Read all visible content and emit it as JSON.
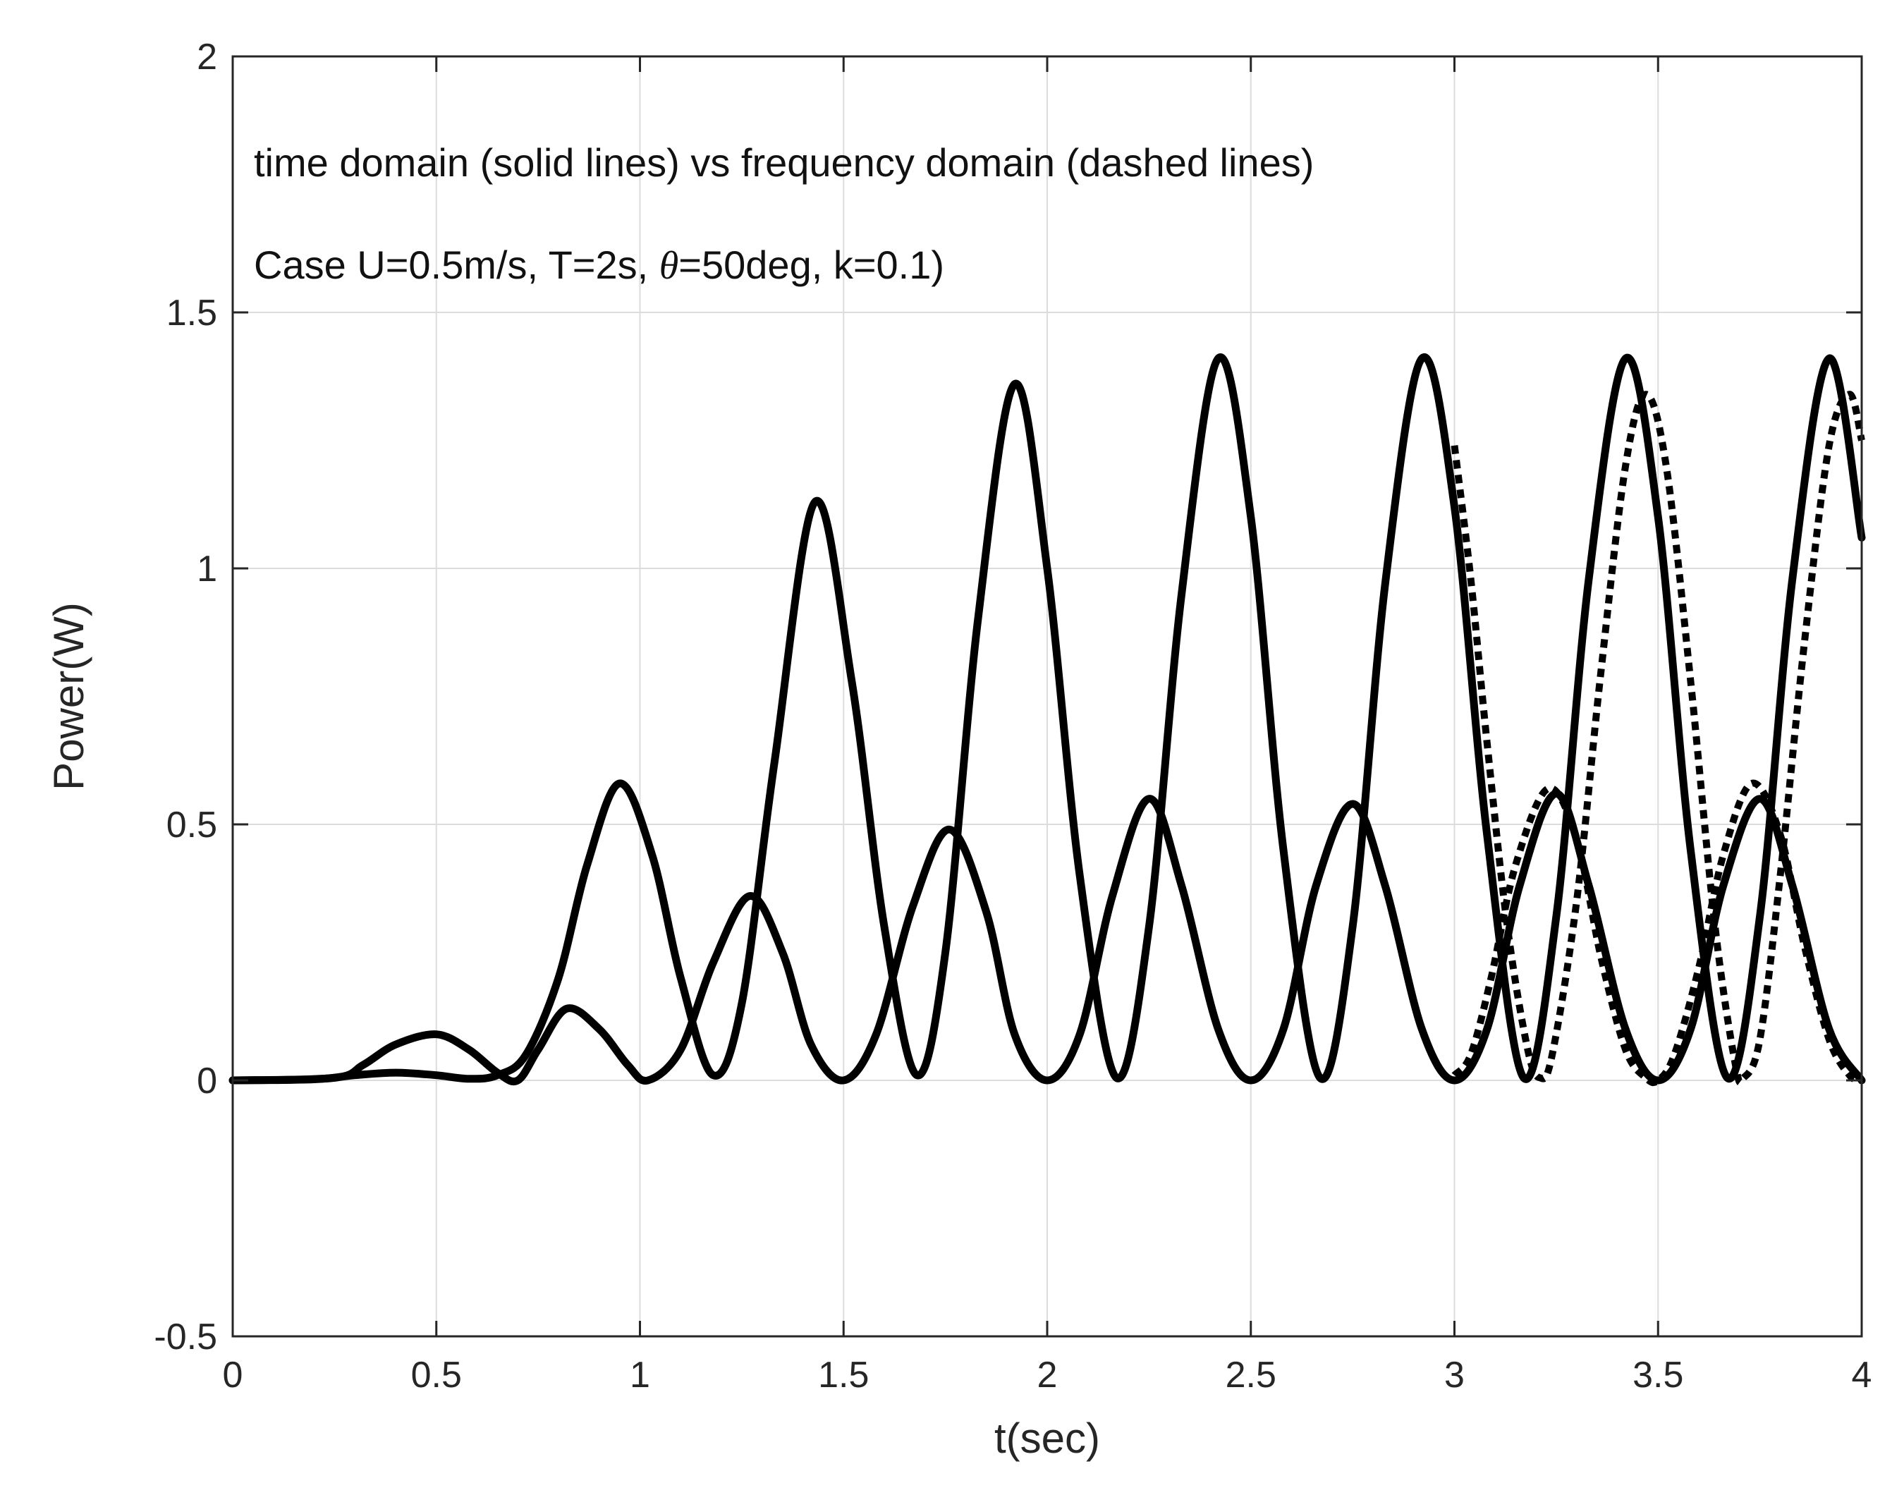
{
  "chart_data": {
    "type": "line",
    "title": "",
    "xlabel": "t(sec)",
    "ylabel": "Power(W)",
    "xlim": [
      0,
      4
    ],
    "ylim": [
      -0.5,
      2
    ],
    "xticks": [
      "0",
      "0.5",
      "1",
      "1.5",
      "2",
      "2.5",
      "3",
      "3.5",
      "4"
    ],
    "yticks": [
      "-0.5",
      "0",
      "0.5",
      "1",
      "1.5",
      "2"
    ],
    "grid": true,
    "annotations": {
      "line1": "time domain (solid lines) vs frequency domain (dashed lines)",
      "line2_prefix": "Case U=0.5m/s, T=2s, ",
      "line2_theta": "θ",
      "line2_suffix": "=50deg, k=0.1)"
    },
    "series": [
      {
        "style": "solid",
        "color": "#000000",
        "points": [
          [
            0,
            0
          ],
          [
            0.2,
            0.002
          ],
          [
            0.3,
            0.01
          ],
          [
            0.4,
            0.015
          ],
          [
            0.5,
            0.01
          ],
          [
            0.58,
            0.003
          ],
          [
            0.65,
            0.01
          ],
          [
            0.72,
            0.05
          ],
          [
            0.8,
            0.2
          ],
          [
            0.87,
            0.42
          ],
          [
            0.95,
            0.58
          ],
          [
            1.03,
            0.44
          ],
          [
            1.1,
            0.2
          ],
          [
            1.18,
            0.01
          ],
          [
            1.25,
            0.15
          ],
          [
            1.33,
            0.62
          ],
          [
            1.43,
            1.13
          ],
          [
            1.52,
            0.78
          ],
          [
            1.6,
            0.3
          ],
          [
            1.68,
            0.01
          ],
          [
            1.75,
            0.25
          ],
          [
            1.83,
            0.9
          ],
          [
            1.92,
            1.36
          ],
          [
            2.0,
            1.0
          ],
          [
            2.08,
            0.4
          ],
          [
            2.17,
            0.005
          ],
          [
            2.25,
            0.3
          ],
          [
            2.33,
            0.95
          ],
          [
            2.42,
            1.41
          ],
          [
            2.5,
            1.1
          ],
          [
            2.58,
            0.45
          ],
          [
            2.67,
            0.005
          ],
          [
            2.75,
            0.3
          ],
          [
            2.83,
            0.97
          ],
          [
            2.92,
            1.41
          ],
          [
            3.0,
            1.12
          ],
          [
            3.08,
            0.48
          ],
          [
            3.17,
            0.005
          ],
          [
            3.25,
            0.32
          ],
          [
            3.33,
            0.98
          ],
          [
            3.42,
            1.41
          ],
          [
            3.5,
            1.1
          ],
          [
            3.58,
            0.45
          ],
          [
            3.67,
            0.005
          ],
          [
            3.75,
            0.32
          ],
          [
            3.83,
            0.98
          ],
          [
            3.92,
            1.41
          ],
          [
            4.0,
            1.06
          ]
        ]
      },
      {
        "style": "solid",
        "color": "#000000",
        "points": [
          [
            0,
            0
          ],
          [
            0.25,
            0.005
          ],
          [
            0.32,
            0.03
          ],
          [
            0.4,
            0.07
          ],
          [
            0.5,
            0.09
          ],
          [
            0.58,
            0.06
          ],
          [
            0.65,
            0.015
          ],
          [
            0.7,
            0.0
          ],
          [
            0.75,
            0.06
          ],
          [
            0.82,
            0.14
          ],
          [
            0.9,
            0.1
          ],
          [
            0.97,
            0.03
          ],
          [
            1.02,
            0.0
          ],
          [
            1.1,
            0.06
          ],
          [
            1.18,
            0.23
          ],
          [
            1.27,
            0.36
          ],
          [
            1.35,
            0.25
          ],
          [
            1.42,
            0.07
          ],
          [
            1.5,
            0.0
          ],
          [
            1.58,
            0.09
          ],
          [
            1.67,
            0.34
          ],
          [
            1.76,
            0.49
          ],
          [
            1.85,
            0.33
          ],
          [
            1.92,
            0.09
          ],
          [
            2.0,
            0.0
          ],
          [
            2.08,
            0.09
          ],
          [
            2.16,
            0.36
          ],
          [
            2.25,
            0.55
          ],
          [
            2.33,
            0.38
          ],
          [
            2.42,
            0.1
          ],
          [
            2.5,
            0.0
          ],
          [
            2.58,
            0.1
          ],
          [
            2.66,
            0.38
          ],
          [
            2.75,
            0.54
          ],
          [
            2.83,
            0.38
          ],
          [
            2.92,
            0.1
          ],
          [
            3.0,
            0.0
          ],
          [
            3.08,
            0.1
          ],
          [
            3.16,
            0.38
          ],
          [
            3.25,
            0.56
          ],
          [
            3.33,
            0.38
          ],
          [
            3.42,
            0.1
          ],
          [
            3.5,
            0.0
          ],
          [
            3.58,
            0.1
          ],
          [
            3.66,
            0.38
          ],
          [
            3.75,
            0.55
          ],
          [
            3.83,
            0.38
          ],
          [
            3.92,
            0.1
          ],
          [
            4.0,
            0.0
          ]
        ]
      },
      {
        "style": "dashed",
        "color": "#000000",
        "points": [
          [
            3.0,
            1.24
          ],
          [
            3.04,
            0.98
          ],
          [
            3.08,
            0.66
          ],
          [
            3.13,
            0.3
          ],
          [
            3.18,
            0.06
          ],
          [
            3.21,
            0.005
          ],
          [
            3.24,
            0.05
          ],
          [
            3.3,
            0.35
          ],
          [
            3.36,
            0.8
          ],
          [
            3.42,
            1.2
          ],
          [
            3.47,
            1.34
          ],
          [
            3.52,
            1.2
          ],
          [
            3.58,
            0.78
          ],
          [
            3.64,
            0.3
          ],
          [
            3.69,
            0.03
          ],
          [
            3.71,
            0.005
          ],
          [
            3.75,
            0.08
          ],
          [
            3.8,
            0.4
          ],
          [
            3.86,
            0.86
          ],
          [
            3.92,
            1.24
          ],
          [
            3.97,
            1.34
          ],
          [
            4.0,
            1.25
          ]
        ]
      },
      {
        "style": "dashed",
        "color": "#000000",
        "points": [
          [
            3.0,
            0.01
          ],
          [
            3.04,
            0.05
          ],
          [
            3.09,
            0.2
          ],
          [
            3.15,
            0.42
          ],
          [
            3.23,
            0.57
          ],
          [
            3.3,
            0.47
          ],
          [
            3.36,
            0.24
          ],
          [
            3.42,
            0.06
          ],
          [
            3.47,
            0.005
          ],
          [
            3.5,
            0.0
          ],
          [
            3.54,
            0.05
          ],
          [
            3.6,
            0.22
          ],
          [
            3.66,
            0.44
          ],
          [
            3.73,
            0.58
          ],
          [
            3.8,
            0.48
          ],
          [
            3.86,
            0.26
          ],
          [
            3.92,
            0.08
          ],
          [
            3.97,
            0.01
          ],
          [
            4.0,
            0.0
          ]
        ]
      }
    ]
  }
}
